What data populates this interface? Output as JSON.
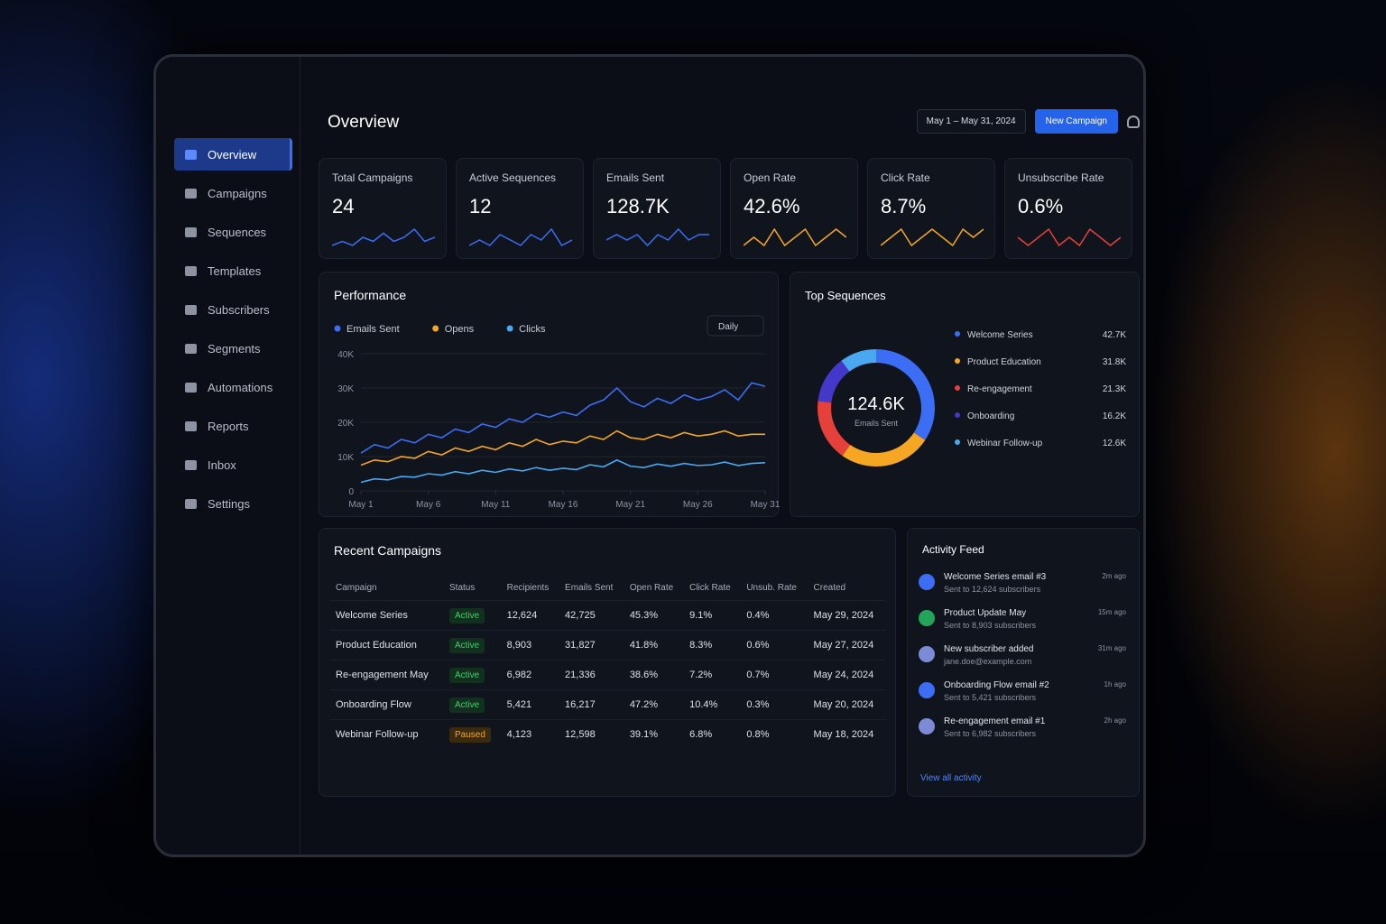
{
  "sidebar": {
    "items": [
      "Overview",
      "Campaigns",
      "Sequences",
      "Templates",
      "Subscribers",
      "Segments",
      "Automations",
      "Reports",
      "Inbox",
      "Settings"
    ],
    "active": 0
  },
  "header": {
    "title": "Overview",
    "date_range": "May 1 – May 31, 2024",
    "new_button": "New Campaign"
  },
  "kpis": [
    {
      "label": "Total Campaigns",
      "value": "24",
      "color": "#3b6ef5",
      "spark": [
        4,
        5,
        4,
        6,
        5,
        7,
        5,
        6,
        8,
        5,
        6
      ]
    },
    {
      "label": "Active Sequences",
      "value": "12",
      "color": "#3b6ef5",
      "spark": [
        4,
        5,
        4,
        6,
        5,
        4,
        6,
        5,
        7,
        4,
        5
      ]
    },
    {
      "label": "Emails Sent",
      "value": "128.7K",
      "color": "#3b6ef5",
      "spark": [
        5,
        6,
        5,
        6,
        4,
        6,
        5,
        7,
        5,
        6,
        6
      ]
    },
    {
      "label": "Open Rate",
      "value": "42.6%",
      "color": "#f5a623",
      "spark": [
        4,
        5,
        4,
        6,
        4,
        5,
        6,
        4,
        5,
        6,
        5
      ]
    },
    {
      "label": "Click Rate",
      "value": "8.7%",
      "color": "#f5a623",
      "spark": [
        4,
        5,
        6,
        4,
        5,
        6,
        5,
        4,
        6,
        5,
        6
      ]
    },
    {
      "label": "Unsubscribe Rate",
      "value": "0.6%",
      "color": "#e5413a",
      "spark": [
        5,
        4,
        5,
        6,
        4,
        5,
        4,
        6,
        5,
        4,
        5
      ]
    }
  ],
  "performance": {
    "title": "Performance",
    "period": "Daily",
    "type": "line",
    "x": [
      1,
      2,
      3,
      4,
      5,
      6,
      7,
      8,
      9,
      10,
      11,
      12,
      13,
      14,
      15,
      16,
      17,
      18,
      19,
      20,
      21,
      22,
      23,
      24,
      25,
      26,
      27,
      28,
      29,
      30,
      31
    ],
    "xlim": [
      1,
      31
    ],
    "xticks": [
      {
        "value": 1,
        "label": "May 1"
      },
      {
        "value": 6,
        "label": "May 6"
      },
      {
        "value": 11,
        "label": "May 11"
      },
      {
        "value": 16,
        "label": "May 16"
      },
      {
        "value": 21,
        "label": "May 21"
      },
      {
        "value": 26,
        "label": "May 26"
      },
      {
        "value": 31,
        "label": "May 31"
      }
    ],
    "ylim": [
      0,
      40000
    ],
    "yticks": [
      0,
      {
        "value": 10000,
        "label": "10K"
      },
      {
        "value": 20000,
        "label": "20K"
      },
      {
        "value": 30000,
        "label": "30K"
      },
      {
        "value": 40000,
        "label": "40K"
      }
    ],
    "series": [
      {
        "name": "Emails Sent",
        "color": "#3b6ef5",
        "values": [
          11000,
          13500,
          12500,
          15000,
          14000,
          16500,
          15500,
          18000,
          17000,
          19500,
          18500,
          21000,
          20000,
          22500,
          21500,
          23000,
          22000,
          25000,
          26500,
          30000,
          26000,
          24500,
          27000,
          25500,
          28000,
          26500,
          27500,
          29500,
          26500,
          31500,
          30500
        ]
      },
      {
        "name": "Opens",
        "color": "#f5a623",
        "values": [
          7500,
          9000,
          8500,
          10000,
          9500,
          11500,
          10500,
          12500,
          11500,
          13000,
          12000,
          14000,
          13000,
          15000,
          13500,
          14500,
          14000,
          16000,
          15000,
          17500,
          15500,
          15000,
          16500,
          15500,
          17000,
          16000,
          16500,
          17500,
          16000,
          16500,
          16500
        ]
      },
      {
        "name": "Clicks",
        "color": "#4aa8f0",
        "values": [
          2500,
          3500,
          3200,
          4200,
          4000,
          5000,
          4600,
          5600,
          5000,
          6000,
          5400,
          6400,
          5800,
          6800,
          6000,
          6600,
          6200,
          7600,
          7000,
          9000,
          7200,
          6800,
          7800,
          7200,
          8000,
          7400,
          7600,
          8400,
          7400,
          8000,
          8200
        ]
      }
    ]
  },
  "top_sequences": {
    "title": "Top Sequences",
    "type": "pie",
    "total_label": "124.6K",
    "center_caption": "Emails Sent",
    "categories": [
      "Welcome Series",
      "Product Education",
      "Re-engagement",
      "Onboarding",
      "Webinar Follow-up"
    ],
    "values": [
      42700,
      31800,
      21300,
      16200,
      12600
    ],
    "value_labels": [
      "42.7K",
      "31.8K",
      "21.3K",
      "16.2K",
      "12.6K"
    ],
    "colors": [
      "#3b6ef5",
      "#f5a623",
      "#e5413a",
      "#4338ca",
      "#4aa8f0"
    ]
  },
  "table": {
    "title": "Recent Campaigns",
    "columns": [
      "Campaign",
      "Status",
      "Recipients",
      "Emails Sent",
      "Open Rate",
      "Click Rate",
      "Unsub. Rate",
      "Created"
    ],
    "rows": [
      [
        "Welcome Series",
        "Active",
        "12,624",
        "42,725",
        "45.3%",
        "9.1%",
        "0.4%",
        "May 29, 2024"
      ],
      [
        "Product Education",
        "Active",
        "8,903",
        "31,827",
        "41.8%",
        "8.3%",
        "0.6%",
        "May 27, 2024"
      ],
      [
        "Re-engagement May",
        "Active",
        "6,982",
        "21,336",
        "38.6%",
        "7.2%",
        "0.7%",
        "May 24, 2024"
      ],
      [
        "Onboarding Flow",
        "Active",
        "5,421",
        "16,217",
        "47.2%",
        "10.4%",
        "0.3%",
        "May 20, 2024"
      ],
      [
        "Webinar Follow-up",
        "Paused",
        "4,123",
        "12,598",
        "39.1%",
        "6.8%",
        "0.8%",
        "May 18, 2024"
      ]
    ]
  },
  "activity": {
    "title": "Activity Feed",
    "items": [
      {
        "title": "Welcome Series email #3",
        "sub": "Sent to 12,624 subscribers",
        "time": "2m ago",
        "color": "#3b6ef5"
      },
      {
        "title": "Product Update May",
        "sub": "Sent to 8,903 subscribers",
        "time": "15m ago",
        "color": "#22a55a"
      },
      {
        "title": "New subscriber added",
        "sub": "jane.doe@example.com",
        "time": "31m ago",
        "color": "#7b8bd6"
      },
      {
        "title": "Onboarding Flow email #2",
        "sub": "Sent to 5,421 subscribers",
        "time": "1h ago",
        "color": "#3b6ef5"
      },
      {
        "title": "Re-engagement email #1",
        "sub": "Sent to 6,982 subscribers",
        "time": "2h ago",
        "color": "#7b8bd6"
      }
    ],
    "link": "View all activity"
  }
}
